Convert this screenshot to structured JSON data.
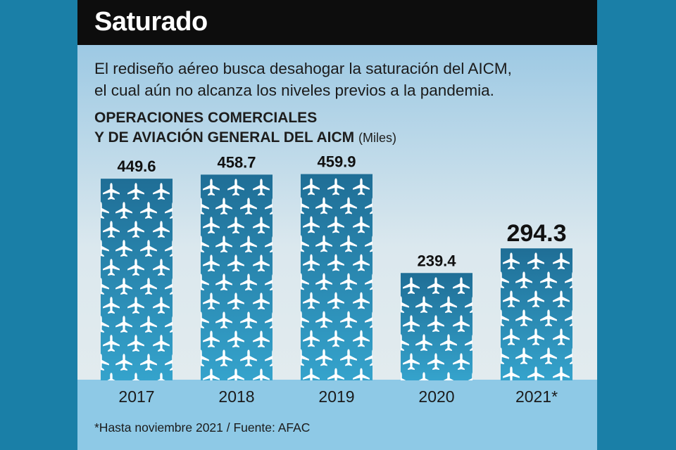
{
  "header": {
    "title": "Saturado"
  },
  "subtitle": {
    "line1": "El rediseño aéreo busca desahogar la saturación del AICM,",
    "line2": "el cual aún no alcanza los niveles previos a la pandemia."
  },
  "chart_data": {
    "type": "bar",
    "title_line1": "OPERACIONES COMERCIALES",
    "title_line2": "Y DE AVIACIÓN GENERAL DEL AICM",
    "unit": "(Miles)",
    "categories": [
      "2017",
      "2018",
      "2019",
      "2020",
      "2021*"
    ],
    "values": [
      449.6,
      458.7,
      459.9,
      239.4,
      294.3
    ],
    "value_labels": [
      "449.6",
      "458.7",
      "459.9",
      "239.4",
      "294.3"
    ],
    "highlight_index": 4,
    "ylim": [
      0,
      500
    ],
    "grid": false,
    "legend": "none"
  },
  "footnote": {
    "note": "*Hasta noviembre 2021 / ",
    "source": "Fuente: AFAC"
  },
  "colors": {
    "background": "#1a7fa7",
    "header": "#0d0d0d",
    "bar_top": "#1f6e96",
    "bar_bottom": "#35a3cc",
    "plane": "#ffffff",
    "band": "#8ec9e6"
  },
  "icons": {
    "bar_pattern": "airplane-icon"
  }
}
